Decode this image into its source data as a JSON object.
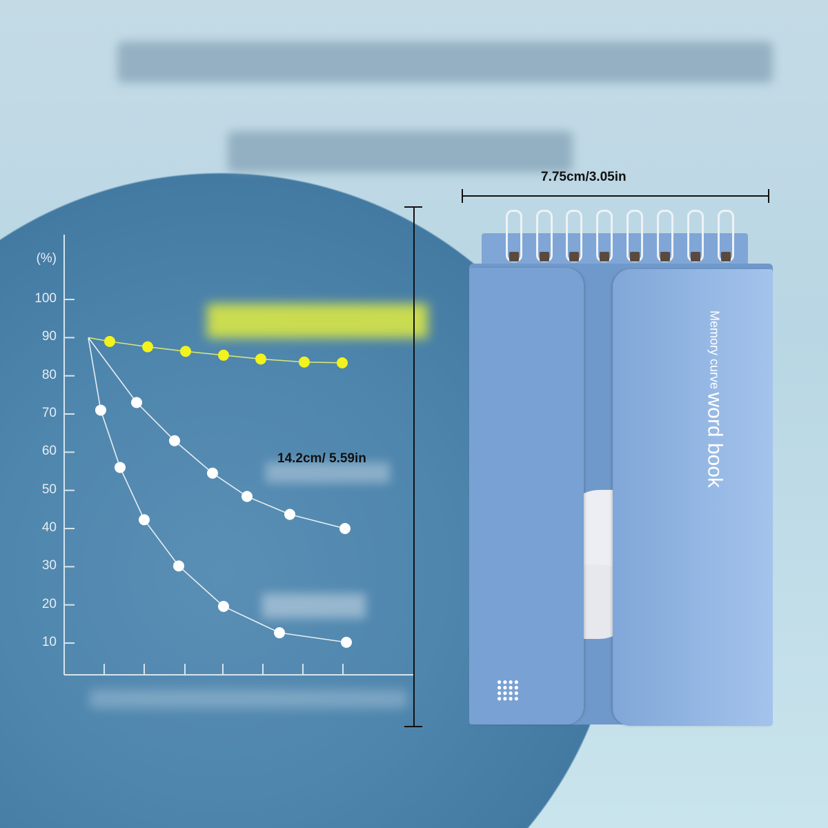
{
  "dimensions": {
    "width_label": "7.75cm/3.05in",
    "height_label": "14.2cm/ 5.59in"
  },
  "notebook": {
    "cover_line1": "Memory curve",
    "cover_line2": "word book",
    "color": "#7aa1d3",
    "icon": "dot-grid-icon"
  },
  "chart_data": {
    "type": "line",
    "ylabel": "(%)",
    "y_ticks": [
      "100",
      "90",
      "80",
      "70",
      "60",
      "50",
      "40",
      "30",
      "20",
      "10"
    ],
    "start_value": 90,
    "series": [
      {
        "color": "#f2f21c",
        "values": [
          89,
          87.6,
          86.4,
          85.4,
          84.4,
          83.6,
          83.4
        ]
      },
      {
        "color": "#ffffff",
        "values": [
          73,
          63,
          54.5,
          48.4,
          43.7,
          40
        ]
      },
      {
        "color": "#ffffff",
        "values": [
          71,
          56,
          42.3,
          30.2,
          19.6,
          12.7,
          10.2
        ]
      }
    ]
  },
  "colors": {
    "background": "#c4dbe6",
    "chart_panel": "#4f86ad",
    "highlight": "#f2f21c"
  }
}
